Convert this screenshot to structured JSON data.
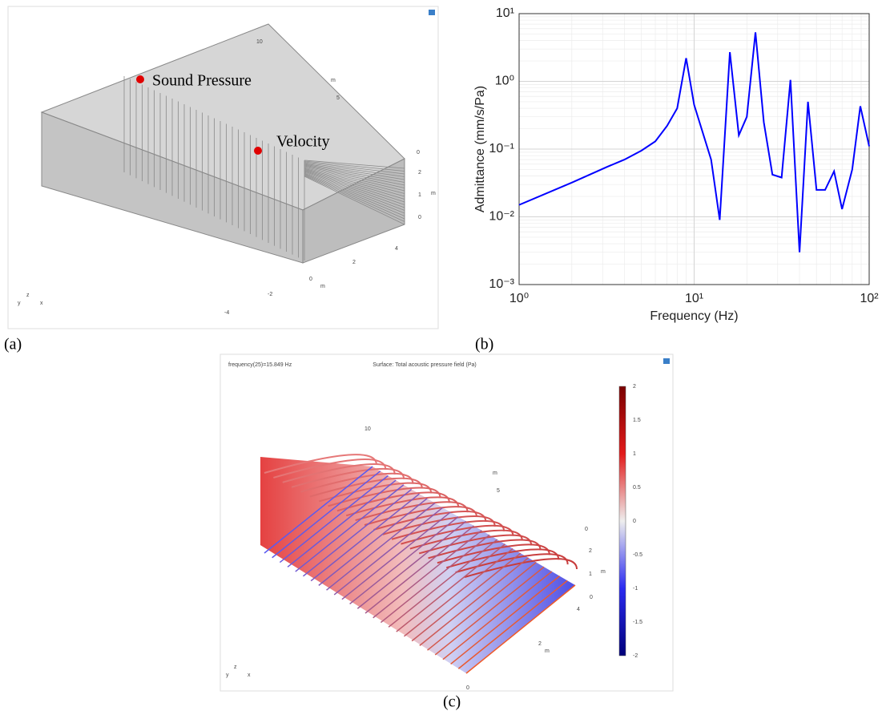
{
  "panel_a": {
    "label": "(a)",
    "annotations": [
      "Sound Pressure",
      "Velocity"
    ],
    "axis_texts": [
      "10",
      "m",
      "5",
      "0",
      "2",
      "1",
      "m",
      "0",
      "4",
      "2",
      "0",
      "m",
      "-2",
      "-4"
    ],
    "triad": [
      "y",
      "z",
      "x"
    ]
  },
  "chart_data": {
    "type": "line",
    "label": "(b)",
    "xlabel": "Frequency (Hz)",
    "ylabel": "Admittance (mm/s/Pa)",
    "log_x": true,
    "log_y": true,
    "grid": true,
    "minor_grid": true,
    "x": [
      1,
      2,
      3.2,
      4,
      5,
      6,
      7,
      8,
      9,
      10,
      12.5,
      14,
      16,
      18,
      20,
      22.4,
      25,
      28,
      31.6,
      35.5,
      40,
      44.7,
      50,
      56,
      63,
      70,
      80,
      89,
      100
    ],
    "series": [
      {
        "name": "Admittance",
        "color": "#0000ff",
        "values": [
          0.015,
          0.032,
          0.055,
          0.07,
          0.095,
          0.13,
          0.22,
          0.4,
          2.2,
          0.45,
          0.07,
          0.009,
          2.7,
          0.16,
          0.3,
          5.3,
          0.25,
          0.042,
          0.038,
          1.05,
          0.003,
          0.5,
          0.025,
          0.025,
          0.047,
          0.013,
          0.05,
          0.43,
          0.11
        ]
      }
    ],
    "xlim": [
      1,
      100
    ],
    "ylim": [
      0.001,
      10
    ],
    "xticks": [
      {
        "value": 1,
        "label": "10⁰"
      },
      {
        "value": 10,
        "label": "10¹"
      },
      {
        "value": 100,
        "label": "10²"
      }
    ],
    "yticks": [
      {
        "value": 0.001,
        "label": "10⁻³"
      },
      {
        "value": 0.01,
        "label": "10⁻²"
      },
      {
        "value": 0.1,
        "label": "10⁻¹"
      },
      {
        "value": 1,
        "label": "10⁰"
      },
      {
        "value": 10,
        "label": "10¹"
      }
    ]
  },
  "panel_c": {
    "label": "(c)",
    "header_left": "frequency(25)=15.849 Hz",
    "header_center": "Surface: Total acoustic pressure field (Pa)",
    "colorbar_ticks": [
      "2",
      "1.5",
      "1",
      "0.5",
      "0",
      "-0.5",
      "-1",
      "-1.5",
      "-2"
    ],
    "axis_texts": [
      "10",
      "m",
      "5",
      "0",
      "2",
      "1",
      "m",
      "0",
      "4",
      "2",
      "m",
      "0"
    ],
    "triad": [
      "y",
      "z",
      "x"
    ]
  }
}
